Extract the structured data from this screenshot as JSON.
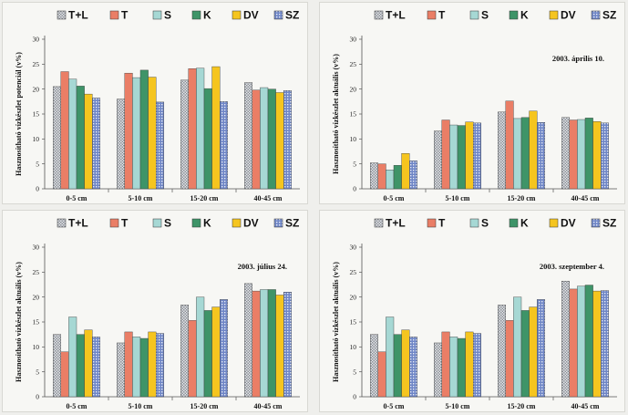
{
  "colors": {
    "T+L": "#c9cdd2",
    "T": "#ea7e66",
    "S": "#a6d8d4",
    "K": "#3e9468",
    "DV": "#f5c51f",
    "SZ": "#6f86c6"
  },
  "chart_data": [
    {
      "type": "bar",
      "title": "",
      "ylabel": "Hasznosítható vízkészlet potenciál (v%)",
      "xlabel": "",
      "ylim": [
        0,
        30
      ],
      "yticks": [
        "0",
        "5",
        "10",
        "15",
        "20",
        "25",
        "30"
      ],
      "grid": false,
      "legend": "top",
      "categories": [
        "0-5 cm",
        "5-10 cm",
        "15-20 cm",
        "40-45 cm"
      ],
      "series": [
        {
          "name": "T+L",
          "values": [
            20.5,
            18.0,
            21.8,
            21.3
          ]
        },
        {
          "name": "T",
          "values": [
            23.5,
            23.2,
            24.1,
            19.8
          ]
        },
        {
          "name": "S",
          "values": [
            22.0,
            22.3,
            24.2,
            20.3
          ]
        },
        {
          "name": "K",
          "values": [
            20.6,
            23.8,
            20.1,
            20.0
          ]
        },
        {
          "name": "DV",
          "values": [
            19.0,
            22.4,
            24.5,
            19.3
          ]
        },
        {
          "name": "SZ",
          "values": [
            18.2,
            17.4,
            17.5,
            19.7
          ]
        }
      ]
    },
    {
      "type": "bar",
      "title": "",
      "date_label": "2003. április 10.",
      "ylabel": "Hasznosítható vízkészlet aktuális (v%)",
      "xlabel": "",
      "ylim": [
        0,
        30
      ],
      "yticks": [
        "0",
        "5",
        "10",
        "15",
        "20",
        "25",
        "30"
      ],
      "grid": false,
      "legend": "top",
      "categories": [
        "0-5 cm",
        "5-10 cm",
        "15-20 cm",
        "40-45 cm"
      ],
      "series": [
        {
          "name": "T+L",
          "values": [
            5.2,
            11.6,
            15.4,
            14.3
          ]
        },
        {
          "name": "T",
          "values": [
            5.0,
            13.8,
            17.6,
            13.8
          ]
        },
        {
          "name": "S",
          "values": [
            3.8,
            12.8,
            14.1,
            13.9
          ]
        },
        {
          "name": "K",
          "values": [
            4.7,
            12.7,
            14.3,
            14.2
          ]
        },
        {
          "name": "DV",
          "values": [
            7.1,
            13.4,
            15.6,
            13.5
          ]
        },
        {
          "name": "SZ",
          "values": [
            5.6,
            13.2,
            13.3,
            13.2
          ]
        }
      ]
    },
    {
      "type": "bar",
      "title": "",
      "date_label": "2003. július 24.",
      "ylabel": "Hasznosítható vízkészlet aktuális (v%)",
      "xlabel": "",
      "ylim": [
        0,
        30
      ],
      "yticks": [
        "0",
        "5",
        "10",
        "15",
        "20",
        "25",
        "30"
      ],
      "grid": false,
      "legend": "top",
      "categories": [
        "0-5 cm",
        "5-10 cm",
        "15-20 cm",
        "40-45 cm"
      ],
      "series": [
        {
          "name": "T+L",
          "values": [
            12.5,
            10.8,
            18.4,
            22.7
          ]
        },
        {
          "name": "T",
          "values": [
            9.0,
            13.0,
            15.3,
            21.2
          ]
        },
        {
          "name": "S",
          "values": [
            16.0,
            12.0,
            20.0,
            21.5
          ]
        },
        {
          "name": "K",
          "values": [
            12.5,
            11.7,
            17.3,
            21.5
          ]
        },
        {
          "name": "DV",
          "values": [
            13.4,
            13.0,
            18.0,
            20.4
          ]
        },
        {
          "name": "SZ",
          "values": [
            12.0,
            12.7,
            19.5,
            21.0
          ]
        }
      ]
    },
    {
      "type": "bar",
      "title": "",
      "date_label": "2003. szeptember 4.",
      "ylabel": "Hasznosítható vízkészlet aktuális (v%)",
      "xlabel": "",
      "ylim": [
        0,
        30
      ],
      "yticks": [
        "0",
        "5",
        "10",
        "15",
        "20",
        "25",
        "30"
      ],
      "grid": false,
      "legend": "top",
      "categories": [
        "0-5 cm",
        "5-10 cm",
        "15-20 cm",
        "40-45 cm"
      ],
      "series": [
        {
          "name": "T+L",
          "values": [
            12.5,
            10.8,
            18.4,
            23.2
          ]
        },
        {
          "name": "T",
          "values": [
            9.0,
            13.0,
            15.3,
            21.6
          ]
        },
        {
          "name": "S",
          "values": [
            16.0,
            12.0,
            20.0,
            22.2
          ]
        },
        {
          "name": "K",
          "values": [
            12.5,
            11.7,
            17.3,
            22.4
          ]
        },
        {
          "name": "DV",
          "values": [
            13.4,
            13.0,
            18.0,
            21.2
          ]
        },
        {
          "name": "SZ",
          "values": [
            12.0,
            12.7,
            19.5,
            21.3
          ]
        }
      ]
    }
  ]
}
